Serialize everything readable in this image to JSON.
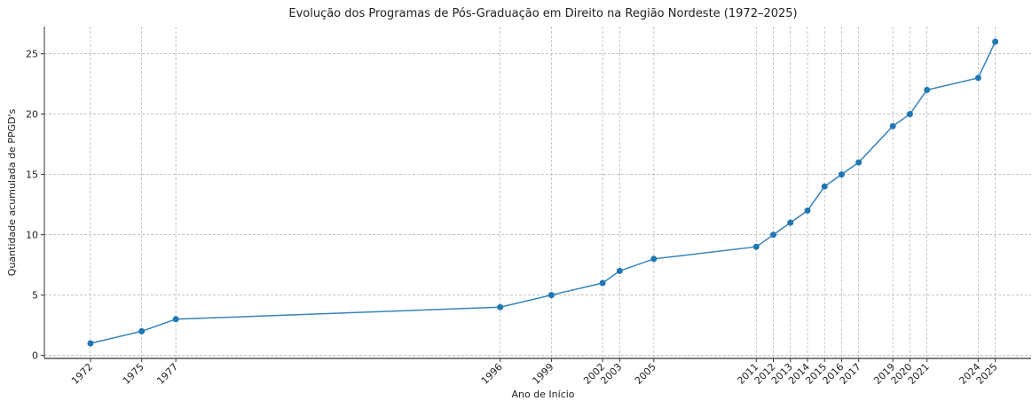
{
  "chart_data": {
    "type": "line",
    "title": "Evolução dos Programas de Pós-Graduação em Direito na Região Nordeste (1972–2025)",
    "x_label": "Ano de Início",
    "y_label": "Quantidade acumulada de PPGD's",
    "x": [
      1972,
      1975,
      1977,
      1996,
      1999,
      2002,
      2003,
      2005,
      2011,
      2012,
      2013,
      2014,
      2015,
      2016,
      2017,
      2019,
      2020,
      2021,
      2024,
      2025
    ],
    "series": [
      {
        "name": "PPGDs",
        "color": "#1f77b4",
        "values": [
          1,
          2,
          3,
          4,
          5,
          6,
          7,
          8,
          9,
          10,
          11,
          12,
          14,
          15,
          16,
          19,
          20,
          22,
          23,
          26
        ]
      }
    ],
    "xlim": [
      1969.3,
      2027.1
    ],
    "ylim": [
      -0.25,
      27.25
    ],
    "xticks": [
      1972,
      1975,
      1977,
      1996,
      1999,
      2002,
      2003,
      2005,
      2011,
      2012,
      2013,
      2014,
      2015,
      2016,
      2017,
      2019,
      2020,
      2021,
      2024,
      2025
    ],
    "yticks": [
      0,
      5,
      10,
      15,
      20,
      25
    ],
    "grid": true
  }
}
